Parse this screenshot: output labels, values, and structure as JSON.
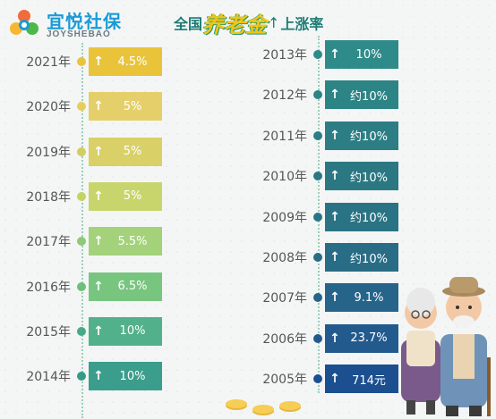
{
  "logo": {
    "cn": "宜悦社保",
    "en": "JOYSHEBAO"
  },
  "title": {
    "pre": "全国",
    "highlight": "养老金",
    "up_glyph": "↑",
    "post": "上涨率"
  },
  "left_rows": [
    {
      "year": "2021年",
      "value": "4.5%",
      "color": "#e9c43a",
      "dot": "#e9c43a"
    },
    {
      "year": "2020年",
      "value": "5%",
      "color": "#e5cf6a",
      "dot": "#e6cd5e"
    },
    {
      "year": "2019年",
      "value": "5%",
      "color": "#d9d068",
      "dot": "#d3cc5f"
    },
    {
      "year": "2018年",
      "value": "5%",
      "color": "#c8d56c",
      "dot": "#c5d266"
    },
    {
      "year": "2017年",
      "value": "5.5%",
      "color": "#a3d27a",
      "dot": "#8fc977"
    },
    {
      "year": "2016年",
      "value": "6.5%",
      "color": "#78c57f",
      "dot": "#6cbf7c"
    },
    {
      "year": "2015年",
      "value": "10%",
      "color": "#52b18a",
      "dot": "#47aa86"
    },
    {
      "year": "2014年",
      "value": "10%",
      "color": "#3b9d8b",
      "dot": "#369a88"
    }
  ],
  "right_rows": [
    {
      "year": "2013年",
      "value": "10%",
      "color": "#2f8b89",
      "dot": "#2f8b89"
    },
    {
      "year": "2012年",
      "value": "约10%",
      "color": "#2d8485",
      "dot": "#2d8485"
    },
    {
      "year": "2011年",
      "value": "约10%",
      "color": "#2c7e84",
      "dot": "#2c7e84"
    },
    {
      "year": "2010年",
      "value": "约10%",
      "color": "#2b7883",
      "dot": "#2b7883"
    },
    {
      "year": "2009年",
      "value": "约10%",
      "color": "#2a7384",
      "dot": "#2a7384"
    },
    {
      "year": "2008年",
      "value": "约10%",
      "color": "#296c86",
      "dot": "#296c86"
    },
    {
      "year": "2007年",
      "value": "9.1%",
      "color": "#26648a",
      "dot": "#26648a"
    },
    {
      "year": "2006年",
      "value": "23.7%",
      "color": "#225a8e",
      "dot": "#225a8e"
    },
    {
      "year": "2005年",
      "value": "714元",
      "color": "#1c4f8f",
      "dot": "#1c4f8f"
    }
  ],
  "arrow_glyph": "↑"
}
